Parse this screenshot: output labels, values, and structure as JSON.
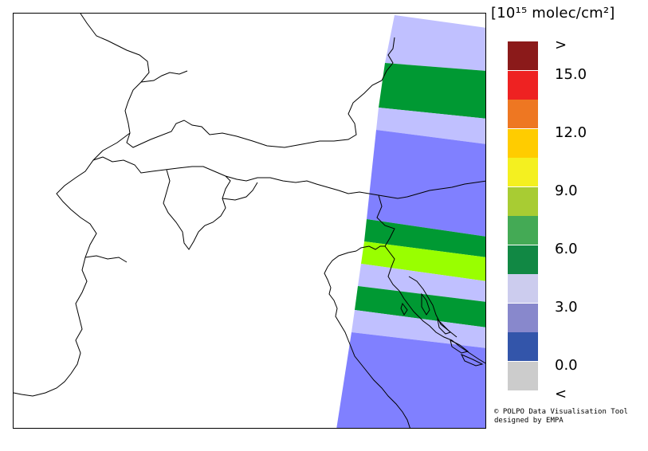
{
  "units_label": "[10¹⁵ molec/cm²]",
  "legend": {
    "bins": [
      {
        "label": ">",
        "color": "#8b1a1a"
      },
      {
        "label": "15.0",
        "color": "#ee2222"
      },
      {
        "label": "",
        "color": "#ee7722"
      },
      {
        "label": "12.0",
        "color": "#ffcc00"
      },
      {
        "label": "",
        "color": "#f4f020"
      },
      {
        "label": "9.0",
        "color": "#a8cc33"
      },
      {
        "label": "",
        "color": "#44aa55"
      },
      {
        "label": "6.0",
        "color": "#118844"
      },
      {
        "label": "",
        "color": "#ccccee"
      },
      {
        "label": "3.0",
        "color": "#8888cc"
      },
      {
        "label": "",
        "color": "#3355aa"
      },
      {
        "label": "0.0",
        "color": "#cccccc"
      },
      {
        "label": "<",
        "color": ""
      }
    ]
  },
  "swath_colors": {
    "light": "#c0c0ff",
    "mid": "#8080ff",
    "green": "#009933",
    "lime": "#99ff00"
  },
  "credit": {
    "line1": "© POLPO Data Visualisation Tool",
    "line2": "designed by EMPA"
  }
}
